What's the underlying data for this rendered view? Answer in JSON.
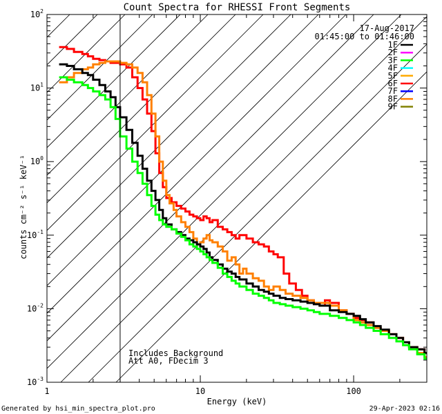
{
  "chart_data": {
    "type": "line",
    "title": "Count Spectra for RHESSI Front Segments",
    "xlabel": "Energy (keV)",
    "ylabel": "counts cm⁻² s⁻¹ keV⁻¹",
    "xscale": "log",
    "yscale": "log",
    "xlim": [
      1,
      300
    ],
    "ylim": [
      0.001,
      100
    ],
    "x_ticks": [
      {
        "value": 1,
        "label": "1"
      },
      {
        "value": 10,
        "label": "10"
      },
      {
        "value": 100,
        "label": "100"
      }
    ],
    "y_ticks": [
      {
        "value": 0.001,
        "base": "10",
        "exp": "-3"
      },
      {
        "value": 0.01,
        "base": "10",
        "exp": "-2"
      },
      {
        "value": 0.1,
        "base": "10",
        "exp": "-1"
      },
      {
        "value": 1,
        "base": "10",
        "exp": "0"
      },
      {
        "value": 10,
        "base": "10",
        "exp": "1"
      },
      {
        "value": 100,
        "base": "10",
        "exp": "2"
      }
    ],
    "date": "17-Aug-2017",
    "time_range": "01:45:00 to 01:46:00",
    "shaded_region": {
      "x_max": 3,
      "pattern": "diagonal-hatch"
    },
    "annotations": [
      "Includes Background",
      "Att A0, FDecim 3"
    ],
    "legend": [
      {
        "label": "1F",
        "color": "#000000"
      },
      {
        "label": "2F",
        "color": "#ff00ff"
      },
      {
        "label": "3F",
        "color": "#00ff00"
      },
      {
        "label": "4F",
        "color": "#00ffff"
      },
      {
        "label": "5F",
        "color": "#ffaa00"
      },
      {
        "label": "6F",
        "color": "#ff0000"
      },
      {
        "label": "7F",
        "color": "#0000ff"
      },
      {
        "label": "8F",
        "color": "#ff8000"
      },
      {
        "label": "9F",
        "color": "#808000"
      }
    ],
    "series": [
      {
        "name": "6F",
        "color": "#ff0000",
        "points": [
          [
            1.2,
            36
          ],
          [
            1.35,
            34
          ],
          [
            1.5,
            31
          ],
          [
            1.7,
            29
          ],
          [
            1.85,
            27
          ],
          [
            2.0,
            25
          ],
          [
            2.2,
            24
          ],
          [
            2.4,
            23
          ],
          [
            2.6,
            22
          ],
          [
            2.8,
            22
          ],
          [
            3.0,
            21
          ],
          [
            3.3,
            19
          ],
          [
            3.6,
            14
          ],
          [
            3.9,
            10
          ],
          [
            4.2,
            7
          ],
          [
            4.5,
            4.5
          ],
          [
            4.8,
            2.6
          ],
          [
            5.1,
            1.3
          ],
          [
            5.4,
            0.7
          ],
          [
            5.7,
            0.45
          ],
          [
            6.0,
            0.32
          ],
          [
            6.5,
            0.28
          ],
          [
            7.0,
            0.25
          ],
          [
            7.5,
            0.23
          ],
          [
            8.0,
            0.21
          ],
          [
            8.5,
            0.19
          ],
          [
            9.0,
            0.18
          ],
          [
            9.5,
            0.17
          ],
          [
            10,
            0.16
          ],
          [
            10.5,
            0.18
          ],
          [
            11,
            0.17
          ],
          [
            11.5,
            0.15
          ],
          [
            12,
            0.16
          ],
          [
            13,
            0.13
          ],
          [
            14,
            0.12
          ],
          [
            15,
            0.11
          ],
          [
            16,
            0.1
          ],
          [
            17,
            0.09
          ],
          [
            18,
            0.1
          ],
          [
            20,
            0.09
          ],
          [
            22,
            0.08
          ],
          [
            24,
            0.075
          ],
          [
            26,
            0.07
          ],
          [
            28,
            0.06
          ],
          [
            30,
            0.055
          ],
          [
            32,
            0.05
          ],
          [
            35,
            0.03
          ],
          [
            38,
            0.022
          ],
          [
            42,
            0.018
          ],
          [
            46,
            0.015
          ],
          [
            50,
            0.013
          ],
          [
            55,
            0.012
          ],
          [
            60,
            0.011
          ],
          [
            65,
            0.013
          ],
          [
            70,
            0.012
          ],
          [
            80,
            0.0095
          ],
          [
            90,
            0.0085
          ],
          [
            100,
            0.0075
          ],
          [
            110,
            0.007
          ],
          [
            120,
            0.0065
          ],
          [
            135,
            0.0055
          ],
          [
            150,
            0.005
          ],
          [
            170,
            0.0045
          ],
          [
            190,
            0.004
          ],
          [
            210,
            0.0035
          ],
          [
            230,
            0.003
          ],
          [
            260,
            0.0028
          ],
          [
            290,
            0.0025
          ]
        ]
      },
      {
        "name": "8F",
        "color": "#ff8000",
        "points": [
          [
            1.2,
            12
          ],
          [
            1.35,
            14
          ],
          [
            1.5,
            16
          ],
          [
            1.7,
            18
          ],
          [
            1.85,
            19
          ],
          [
            2.0,
            21
          ],
          [
            2.2,
            22
          ],
          [
            2.4,
            23
          ],
          [
            2.6,
            23
          ],
          [
            2.8,
            23
          ],
          [
            3.0,
            22
          ],
          [
            3.3,
            21
          ],
          [
            3.6,
            19
          ],
          [
            3.9,
            16
          ],
          [
            4.2,
            12
          ],
          [
            4.5,
            8
          ],
          [
            4.8,
            4.5
          ],
          [
            5.1,
            2.2
          ],
          [
            5.4,
            1.0
          ],
          [
            5.7,
            0.55
          ],
          [
            6.0,
            0.35
          ],
          [
            6.3,
            0.27
          ],
          [
            6.7,
            0.22
          ],
          [
            7.0,
            0.18
          ],
          [
            7.5,
            0.15
          ],
          [
            8.0,
            0.13
          ],
          [
            8.5,
            0.11
          ],
          [
            9.0,
            0.09
          ],
          [
            9.5,
            0.075
          ],
          [
            10,
            0.08
          ],
          [
            10.5,
            0.09
          ],
          [
            11,
            0.1
          ],
          [
            11.5,
            0.085
          ],
          [
            12,
            0.08
          ],
          [
            13,
            0.07
          ],
          [
            14,
            0.06
          ],
          [
            15,
            0.045
          ],
          [
            16,
            0.05
          ],
          [
            17,
            0.04
          ],
          [
            18,
            0.03
          ],
          [
            19,
            0.035
          ],
          [
            20,
            0.03
          ],
          [
            22,
            0.026
          ],
          [
            24,
            0.024
          ],
          [
            26,
            0.02
          ],
          [
            28,
            0.018
          ],
          [
            30,
            0.02
          ],
          [
            33,
            0.018
          ],
          [
            36,
            0.016
          ],
          [
            40,
            0.015
          ],
          [
            45,
            0.014
          ],
          [
            50,
            0.013
          ],
          [
            55,
            0.012
          ],
          [
            60,
            0.012
          ],
          [
            70,
            0.011
          ],
          [
            80,
            0.0095
          ],
          [
            90,
            0.0085
          ],
          [
            100,
            0.007
          ],
          [
            110,
            0.0065
          ],
          [
            120,
            0.006
          ],
          [
            135,
            0.0055
          ],
          [
            150,
            0.005
          ],
          [
            170,
            0.0045
          ],
          [
            190,
            0.004
          ],
          [
            210,
            0.0035
          ],
          [
            230,
            0.003
          ],
          [
            260,
            0.0025
          ],
          [
            290,
            0.0022
          ]
        ]
      },
      {
        "name": "1F",
        "color": "#000000",
        "points": [
          [
            1.2,
            21
          ],
          [
            1.35,
            20
          ],
          [
            1.5,
            18
          ],
          [
            1.7,
            16
          ],
          [
            1.85,
            15
          ],
          [
            2.0,
            13
          ],
          [
            2.2,
            11
          ],
          [
            2.4,
            9
          ],
          [
            2.6,
            7.5
          ],
          [
            2.8,
            5.5
          ],
          [
            3.0,
            4
          ],
          [
            3.3,
            2.7
          ],
          [
            3.6,
            1.8
          ],
          [
            3.9,
            1.2
          ],
          [
            4.2,
            0.8
          ],
          [
            4.5,
            0.55
          ],
          [
            4.8,
            0.4
          ],
          [
            5.1,
            0.3
          ],
          [
            5.4,
            0.22
          ],
          [
            5.7,
            0.17
          ],
          [
            6.0,
            0.14
          ],
          [
            6.5,
            0.12
          ],
          [
            7.0,
            0.11
          ],
          [
            7.5,
            0.1
          ],
          [
            8.0,
            0.09
          ],
          [
            8.5,
            0.085
          ],
          [
            9.0,
            0.08
          ],
          [
            9.5,
            0.075
          ],
          [
            10,
            0.07
          ],
          [
            10.5,
            0.065
          ],
          [
            11,
            0.058
          ],
          [
            11.5,
            0.05
          ],
          [
            12,
            0.046
          ],
          [
            13,
            0.04
          ],
          [
            14,
            0.035
          ],
          [
            15,
            0.032
          ],
          [
            16,
            0.03
          ],
          [
            17,
            0.027
          ],
          [
            18,
            0.025
          ],
          [
            20,
            0.022
          ],
          [
            22,
            0.02
          ],
          [
            24,
            0.018
          ],
          [
            26,
            0.017
          ],
          [
            28,
            0.016
          ],
          [
            30,
            0.015
          ],
          [
            33,
            0.014
          ],
          [
            36,
            0.0135
          ],
          [
            40,
            0.013
          ],
          [
            45,
            0.0125
          ],
          [
            50,
            0.012
          ],
          [
            55,
            0.0115
          ],
          [
            60,
            0.011
          ],
          [
            70,
            0.0095
          ],
          [
            80,
            0.009
          ],
          [
            90,
            0.0085
          ],
          [
            100,
            0.008
          ],
          [
            110,
            0.0072
          ],
          [
            120,
            0.0065
          ],
          [
            135,
            0.0058
          ],
          [
            150,
            0.0052
          ],
          [
            170,
            0.0045
          ],
          [
            190,
            0.004
          ],
          [
            210,
            0.0035
          ],
          [
            230,
            0.003
          ],
          [
            260,
            0.0028
          ],
          [
            290,
            0.0025
          ]
        ]
      },
      {
        "name": "3F",
        "color": "#00ff00",
        "points": [
          [
            1.2,
            14
          ],
          [
            1.35,
            13
          ],
          [
            1.5,
            12
          ],
          [
            1.7,
            11
          ],
          [
            1.85,
            10
          ],
          [
            2.0,
            9
          ],
          [
            2.2,
            8
          ],
          [
            2.4,
            7
          ],
          [
            2.6,
            5.5
          ],
          [
            2.8,
            3.8
          ],
          [
            3.0,
            2.2
          ],
          [
            3.3,
            1.5
          ],
          [
            3.6,
            1.0
          ],
          [
            3.9,
            0.7
          ],
          [
            4.2,
            0.5
          ],
          [
            4.5,
            0.35
          ],
          [
            4.8,
            0.25
          ],
          [
            5.1,
            0.19
          ],
          [
            5.4,
            0.16
          ],
          [
            5.7,
            0.14
          ],
          [
            6.0,
            0.13
          ],
          [
            6.5,
            0.12
          ],
          [
            7.0,
            0.105
          ],
          [
            7.5,
            0.095
          ],
          [
            8.0,
            0.085
          ],
          [
            8.5,
            0.075
          ],
          [
            9.0,
            0.07
          ],
          [
            9.5,
            0.065
          ],
          [
            10,
            0.06
          ],
          [
            10.5,
            0.055
          ],
          [
            11,
            0.05
          ],
          [
            11.5,
            0.046
          ],
          [
            12,
            0.042
          ],
          [
            13,
            0.036
          ],
          [
            14,
            0.03
          ],
          [
            15,
            0.027
          ],
          [
            16,
            0.024
          ],
          [
            17,
            0.022
          ],
          [
            18,
            0.02
          ],
          [
            20,
            0.018
          ],
          [
            22,
            0.016
          ],
          [
            24,
            0.015
          ],
          [
            26,
            0.014
          ],
          [
            28,
            0.013
          ],
          [
            30,
            0.012
          ],
          [
            33,
            0.0115
          ],
          [
            36,
            0.011
          ],
          [
            40,
            0.0105
          ],
          [
            45,
            0.01
          ],
          [
            50,
            0.0095
          ],
          [
            55,
            0.009
          ],
          [
            60,
            0.0085
          ],
          [
            70,
            0.008
          ],
          [
            80,
            0.0075
          ],
          [
            90,
            0.007
          ],
          [
            100,
            0.0065
          ],
          [
            110,
            0.006
          ],
          [
            120,
            0.0055
          ],
          [
            135,
            0.005
          ],
          [
            150,
            0.0045
          ],
          [
            170,
            0.004
          ],
          [
            190,
            0.0036
          ],
          [
            210,
            0.0032
          ],
          [
            230,
            0.0028
          ],
          [
            260,
            0.0024
          ],
          [
            290,
            0.0021
          ]
        ]
      }
    ],
    "footer_left": "Generated by hsi_min_spectra_plot.pro",
    "footer_right": "29-Apr-2023 02:16"
  }
}
